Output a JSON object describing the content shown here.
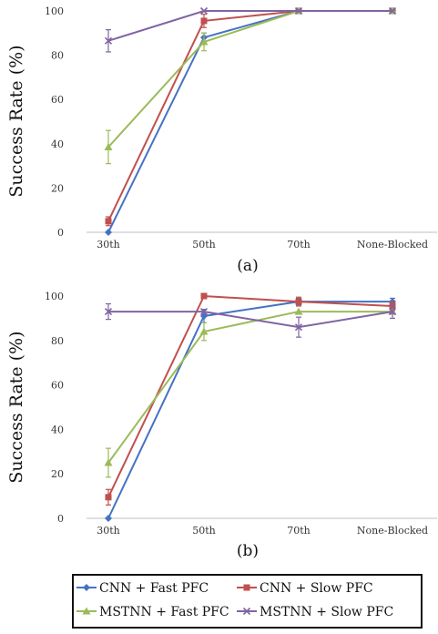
{
  "chart_data": [
    {
      "type": "line",
      "panel_label": "(a)",
      "ylabel": "Success Rate (%)",
      "categories": [
        "30th",
        "50th",
        "70th",
        "None-Blocked"
      ],
      "ylim": [
        0,
        100
      ],
      "yticks": [
        0,
        20,
        40,
        60,
        80,
        100
      ],
      "grid": false,
      "series": [
        {
          "name": "CNN + Fast PFC",
          "color": "#4472C4",
          "marker": "diamond",
          "values": [
            0,
            88,
            100,
            100
          ],
          "err": [
            0,
            2,
            0,
            0
          ]
        },
        {
          "name": "CNN + Slow PFC",
          "color": "#C0504D",
          "marker": "square",
          "values": [
            5,
            95.5,
            100,
            100
          ],
          "err": [
            2,
            3,
            0,
            0
          ]
        },
        {
          "name": "MSTNN + Fast PFC",
          "color": "#9BBB59",
          "marker": "triangle",
          "values": [
            38.5,
            86,
            100,
            100
          ],
          "err": [
            7.5,
            4,
            0,
            0
          ]
        },
        {
          "name": "MSTNN + Slow PFC",
          "color": "#8064A2",
          "marker": "x",
          "values": [
            86.5,
            100,
            100,
            100
          ],
          "err": [
            5,
            0,
            0,
            0
          ]
        }
      ]
    },
    {
      "type": "line",
      "panel_label": "(b)",
      "ylabel": "Success Rate (%)",
      "categories": [
        "30th",
        "50th",
        "70th",
        "None-Blocked"
      ],
      "ylim": [
        0,
        100
      ],
      "yticks": [
        0,
        20,
        40,
        60,
        80,
        100
      ],
      "grid": false,
      "series": [
        {
          "name": "CNN + Fast PFC",
          "color": "#4472C4",
          "marker": "diamond",
          "values": [
            0,
            91,
            97.5,
            97.5
          ],
          "err": [
            0,
            3,
            1.5,
            1.5
          ]
        },
        {
          "name": "CNN + Slow PFC",
          "color": "#C0504D",
          "marker": "square",
          "values": [
            9.5,
            100,
            97.5,
            95.5
          ],
          "err": [
            3.5,
            0,
            2,
            2
          ]
        },
        {
          "name": "MSTNN + Fast PFC",
          "color": "#9BBB59",
          "marker": "triangle",
          "values": [
            25,
            84,
            93,
            93
          ],
          "err": [
            6.5,
            4,
            0,
            0
          ]
        },
        {
          "name": "MSTNN + Slow PFC",
          "color": "#8064A2",
          "marker": "x",
          "values": [
            93,
            93,
            86,
            93
          ],
          "err": [
            3.5,
            0,
            4.5,
            3
          ]
        }
      ]
    }
  ],
  "legend": {
    "placement": "bottom",
    "items": [
      {
        "name": "CNN + Fast PFC",
        "color": "#4472C4",
        "marker": "diamond"
      },
      {
        "name": "CNN + Slow PFC",
        "color": "#C0504D",
        "marker": "square"
      },
      {
        "name": "MSTNN + Fast PFC",
        "color": "#9BBB59",
        "marker": "triangle"
      },
      {
        "name": "MSTNN + Slow PFC",
        "color": "#8064A2",
        "marker": "x"
      }
    ]
  }
}
